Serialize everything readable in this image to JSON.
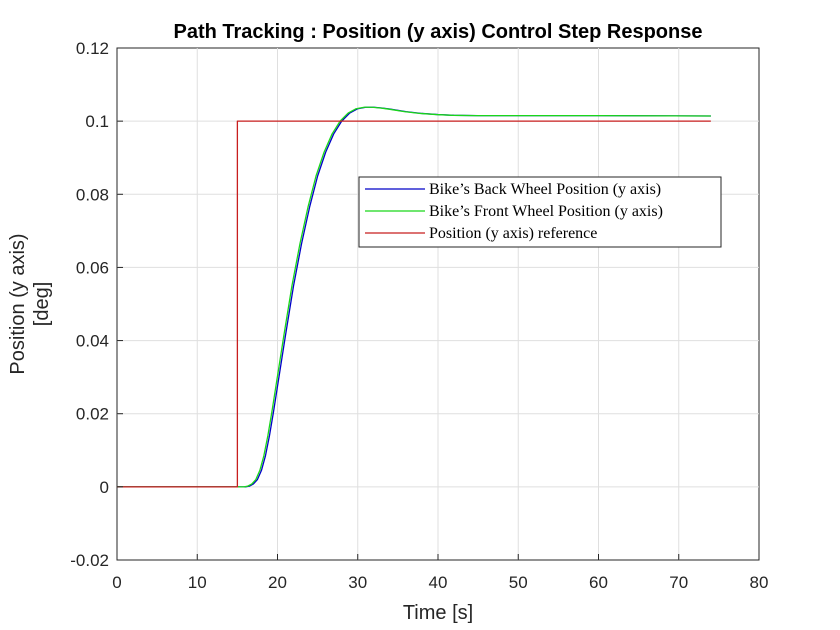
{
  "chart_data": {
    "type": "line",
    "title": "Path Tracking : Position (y axis) Control Step Response",
    "xlabel": "Time [s]",
    "ylabel_lines": [
      "Position (y axis)",
      "[deg]"
    ],
    "xlim": [
      0,
      80
    ],
    "ylim": [
      -0.02,
      0.12
    ],
    "x_ticks": [
      "0",
      "10",
      "20",
      "30",
      "40",
      "50",
      "60",
      "70",
      "80"
    ],
    "x_tick_values": [
      0,
      10,
      20,
      30,
      40,
      50,
      60,
      70,
      80
    ],
    "y_ticks": [
      "-0.02",
      "0",
      "0.02",
      "0.04",
      "0.06",
      "0.08",
      "0.1",
      "0.12"
    ],
    "y_tick_values": [
      -0.02,
      0,
      0.02,
      0.04,
      0.06,
      0.08,
      0.1,
      0.12
    ],
    "grid": true,
    "legend_position": "center-right",
    "series": [
      {
        "name": "Bike’s Back Wheel Position (y axis)",
        "color": "#0000c8",
        "x": [
          0,
          15,
          16,
          16.5,
          17,
          17.5,
          18,
          18.5,
          19,
          19.5,
          20,
          21,
          22,
          23,
          24,
          25,
          26,
          27,
          28,
          29,
          30,
          31,
          32,
          33,
          34,
          36,
          38,
          40,
          42,
          45,
          50,
          60,
          74
        ],
        "y": [
          0,
          0,
          0,
          0.0002,
          0.0008,
          0.002,
          0.0045,
          0.0085,
          0.014,
          0.0205,
          0.0275,
          0.0415,
          0.055,
          0.0665,
          0.0765,
          0.085,
          0.0915,
          0.0965,
          0.1,
          0.1022,
          0.1034,
          0.1038,
          0.1038,
          0.1036,
          0.1033,
          0.1026,
          0.1021,
          0.1018,
          0.1016,
          0.1015,
          0.1015,
          0.1015,
          0.1014
        ]
      },
      {
        "name": "Bike’s Front Wheel Position (y axis)",
        "color": "#19d719",
        "x": [
          0,
          15,
          15.8,
          16.3,
          16.8,
          17.3,
          17.8,
          18.3,
          18.8,
          19.3,
          19.8,
          20.8,
          21.8,
          22.8,
          23.8,
          24.8,
          25.8,
          26.8,
          27.8,
          28.8,
          29.8,
          30.8,
          31.8,
          32.8,
          33.8,
          35.8,
          37.8,
          39.8,
          41.8,
          44.8,
          50,
          60,
          74
        ],
        "y": [
          0,
          0,
          0,
          0.0002,
          0.0008,
          0.002,
          0.0045,
          0.0085,
          0.014,
          0.0205,
          0.0275,
          0.0415,
          0.055,
          0.0665,
          0.0765,
          0.085,
          0.0915,
          0.0965,
          0.1,
          0.1022,
          0.1034,
          0.1038,
          0.1038,
          0.1036,
          0.1033,
          0.1026,
          0.1021,
          0.1018,
          0.1016,
          0.1015,
          0.1015,
          0.1015,
          0.1014
        ]
      },
      {
        "name": "Position (y axis) reference",
        "color": "#c81e1e",
        "x": [
          0,
          15,
          15,
          74
        ],
        "y": [
          0,
          0,
          0.1,
          0.1
        ]
      }
    ]
  }
}
